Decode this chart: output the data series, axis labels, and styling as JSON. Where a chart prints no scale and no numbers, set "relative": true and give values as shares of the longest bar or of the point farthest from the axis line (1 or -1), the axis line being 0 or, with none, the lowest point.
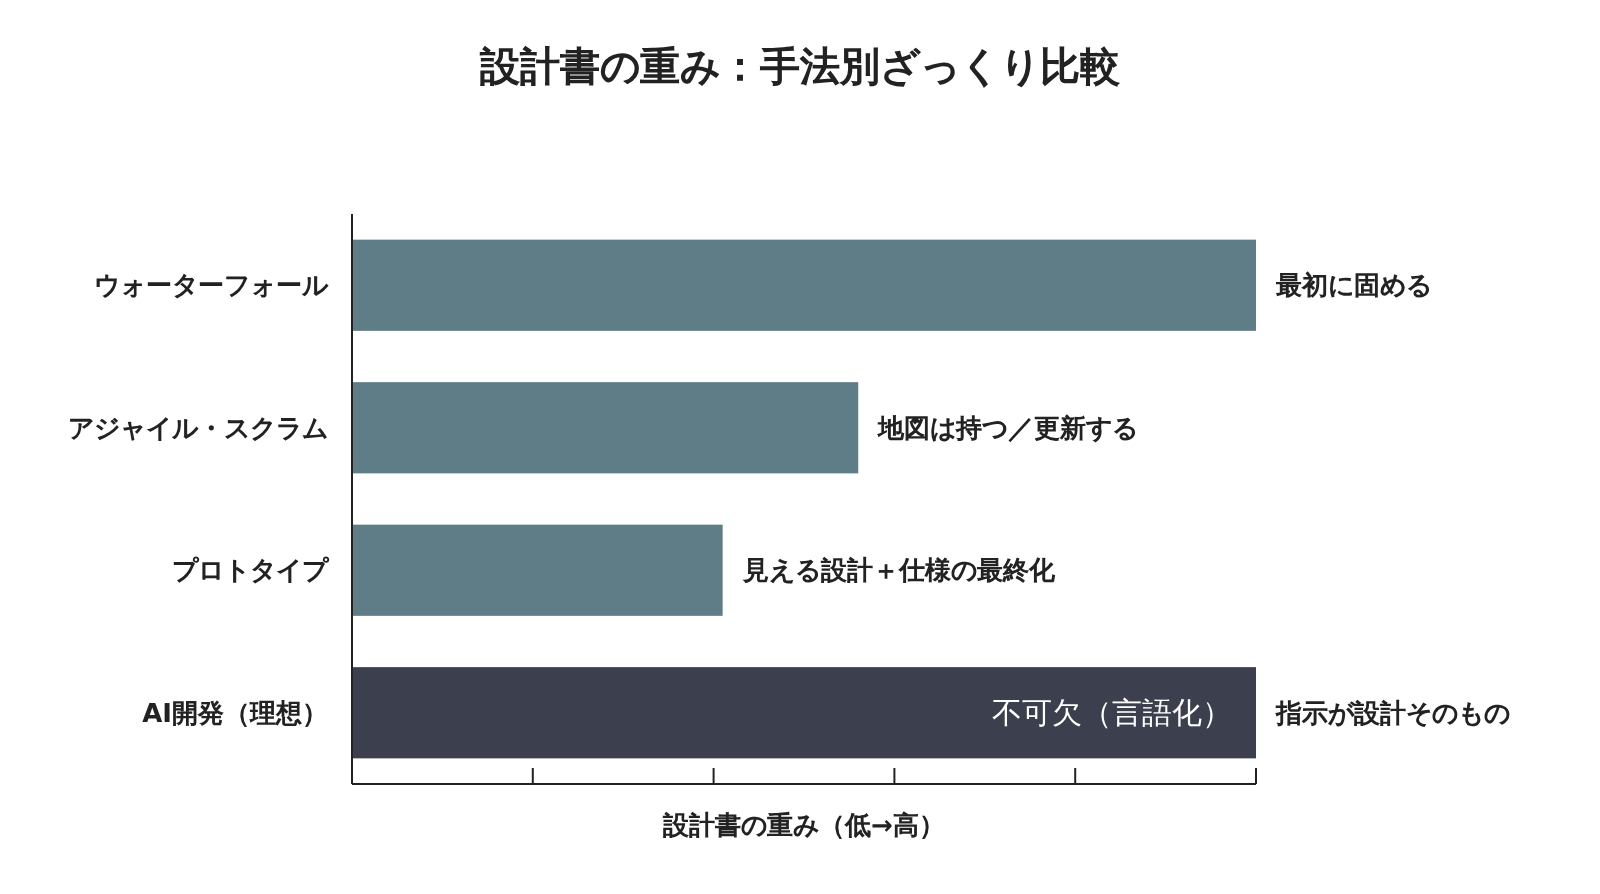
{
  "chart_data": {
    "type": "bar",
    "orientation": "horizontal",
    "relative": true,
    "title": "設計書の重み：手法別ざっくり比較",
    "xlabel": "設計書の重み（低→高）",
    "categories": [
      "ウォーターフォール",
      "アジャイル・スクラム",
      "プロトタイプ",
      "AI開発（理想）"
    ],
    "values": [
      1,
      0.56,
      0.41,
      1
    ],
    "colors": [
      "#5f7d87",
      "#5f7d87",
      "#5f7d87",
      "#3c3f4d"
    ],
    "annotations": [
      {
        "text": "最初に固める",
        "x": 1,
        "y": "ウォーターフォール"
      },
      {
        "text": "地図は持つ／更新する",
        "x": 0.56,
        "y": "アジャイル・スクラム"
      },
      {
        "text": "見える設計＋仕様の最終化",
        "x": 0.41,
        "y": "プロトタイプ"
      },
      {
        "text": "不可欠（言語化）",
        "x": 1,
        "y": "AI開発（理想）"
      },
      {
        "text": "指示が設計そのもの",
        "x": 1,
        "y": "AI開発（理想）"
      }
    ],
    "tick_labels": "y"
  }
}
